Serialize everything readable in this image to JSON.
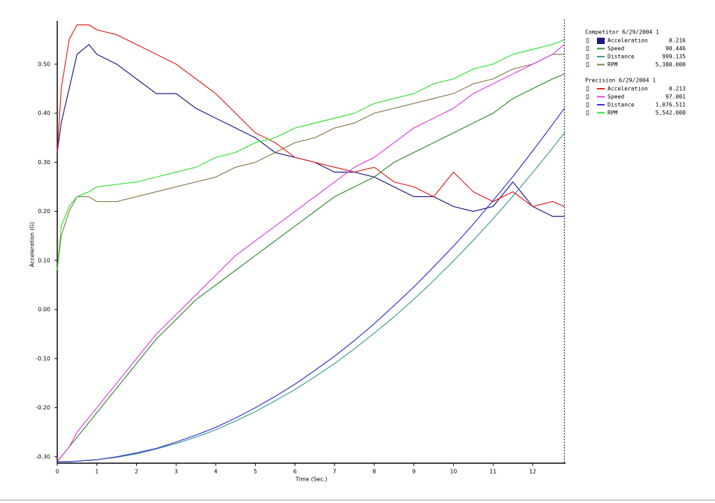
{
  "chart_data": {
    "type": "line",
    "y_label": "Acceleration (G)",
    "x_label": "Time (Sec.)",
    "xlim": [
      0,
      12.83
    ],
    "ylim": [
      -0.313,
      0.588
    ],
    "xticks": [
      0,
      1,
      2,
      3,
      4,
      5,
      6,
      7,
      8,
      9,
      10,
      11,
      12
    ],
    "yticks": [
      {
        "value": -0.3,
        "label": "-0.30"
      },
      {
        "value": -0.2,
        "label": "-0.20"
      },
      {
        "value": -0.1,
        "label": "-0.10"
      },
      {
        "value": 0,
        "label": "0.00"
      },
      {
        "value": 0.1,
        "label": "0.10"
      },
      {
        "value": 0.2,
        "label": "0.20"
      },
      {
        "value": 0.3,
        "label": "0.30"
      },
      {
        "value": 0.4,
        "label": "0.40"
      },
      {
        "value": 0.5,
        "label": "0.50"
      }
    ],
    "cursor_x": 12.8,
    "legend_titles": [
      "Competitor 6/29/2004 1",
      "Precision 6/29/2004 1"
    ],
    "x": [
      0,
      0.1,
      0.3,
      0.5,
      0.8,
      1,
      1.5,
      2,
      2.5,
      3,
      3.5,
      4,
      4.5,
      5,
      5.5,
      6,
      6.5,
      7,
      7.5,
      8,
      8.5,
      9,
      9.5,
      10,
      10.5,
      11,
      11.5,
      12,
      12.5,
      12.8
    ],
    "series": [
      {
        "name": "Acceleration",
        "readout": "0.216",
        "color": "#1a1a80",
        "values": [
          0.32,
          0.38,
          0.45,
          0.52,
          0.54,
          0.52,
          0.5,
          0.47,
          0.44,
          0.44,
          0.41,
          0.39,
          0.37,
          0.35,
          0.32,
          0.31,
          0.3,
          0.28,
          0.28,
          0.27,
          0.25,
          0.23,
          0.23,
          0.21,
          0.2,
          0.21,
          0.26,
          0.21,
          0.19,
          0.19
        ]
      },
      {
        "name": "Speed",
        "readout": "90.446",
        "color": "#2e8b2e",
        "values": [
          -0.31,
          -0.3,
          -0.28,
          -0.26,
          -0.23,
          -0.21,
          -0.16,
          -0.11,
          -0.06,
          -0.02,
          0.02,
          0.05,
          0.08,
          0.11,
          0.14,
          0.17,
          0.2,
          0.23,
          0.25,
          0.27,
          0.3,
          0.32,
          0.34,
          0.36,
          0.38,
          0.4,
          0.43,
          0.45,
          0.47,
          0.48
        ]
      },
      {
        "name": "Distance",
        "readout": "999.135",
        "color": "#3a9a9a",
        "values": [
          -0.31,
          -0.31,
          -0.31,
          -0.309,
          -0.307,
          -0.306,
          -0.301,
          -0.294,
          -0.284,
          -0.273,
          -0.26,
          -0.245,
          -0.227,
          -0.208,
          -0.186,
          -0.163,
          -0.137,
          -0.11,
          -0.08,
          -0.048,
          -0.015,
          0.021,
          0.059,
          0.099,
          0.141,
          0.185,
          0.231,
          0.279,
          0.329,
          0.36
        ]
      },
      {
        "name": "RPM",
        "readout": "5,380.000",
        "color": "#8b7a4a",
        "values": [
          0.08,
          0.15,
          0.2,
          0.23,
          0.23,
          0.22,
          0.22,
          0.23,
          0.24,
          0.25,
          0.26,
          0.27,
          0.29,
          0.3,
          0.32,
          0.34,
          0.35,
          0.37,
          0.38,
          0.4,
          0.41,
          0.42,
          0.43,
          0.44,
          0.46,
          0.47,
          0.49,
          0.5,
          0.52,
          0.52
        ]
      },
      {
        "name": "Acceleration",
        "readout": "0.213",
        "color": "#e02020",
        "values": [
          0.32,
          0.45,
          0.55,
          0.58,
          0.58,
          0.57,
          0.56,
          0.54,
          0.52,
          0.5,
          0.47,
          0.44,
          0.4,
          0.36,
          0.34,
          0.31,
          0.3,
          0.29,
          0.28,
          0.29,
          0.26,
          0.25,
          0.23,
          0.28,
          0.24,
          0.22,
          0.24,
          0.21,
          0.22,
          0.21
        ]
      },
      {
        "name": "Speed",
        "readout": "97.001",
        "color": "#e040e0",
        "values": [
          -0.31,
          -0.3,
          -0.28,
          -0.25,
          -0.22,
          -0.2,
          -0.15,
          -0.1,
          -0.05,
          -0.01,
          0.03,
          0.07,
          0.11,
          0.14,
          0.17,
          0.2,
          0.23,
          0.26,
          0.29,
          0.31,
          0.34,
          0.37,
          0.39,
          0.41,
          0.44,
          0.46,
          0.48,
          0.5,
          0.52,
          0.54
        ]
      },
      {
        "name": "Distance",
        "readout": "1,076.511",
        "color": "#3030d0",
        "values": [
          -0.31,
          -0.31,
          -0.31,
          -0.309,
          -0.307,
          -0.306,
          -0.3,
          -0.292,
          -0.283,
          -0.27,
          -0.256,
          -0.24,
          -0.221,
          -0.2,
          -0.177,
          -0.152,
          -0.124,
          -0.095,
          -0.063,
          -0.029,
          0.008,
          0.046,
          0.087,
          0.129,
          0.174,
          0.222,
          0.271,
          0.323,
          0.377,
          0.41
        ]
      },
      {
        "name": "RPM",
        "readout": "5,542.000",
        "color": "#30e030",
        "values": [
          0.08,
          0.17,
          0.21,
          0.23,
          0.24,
          0.25,
          0.255,
          0.26,
          0.27,
          0.28,
          0.29,
          0.31,
          0.32,
          0.34,
          0.35,
          0.37,
          0.38,
          0.39,
          0.4,
          0.42,
          0.43,
          0.44,
          0.46,
          0.47,
          0.49,
          0.5,
          0.52,
          0.53,
          0.54,
          0.55
        ]
      }
    ]
  }
}
